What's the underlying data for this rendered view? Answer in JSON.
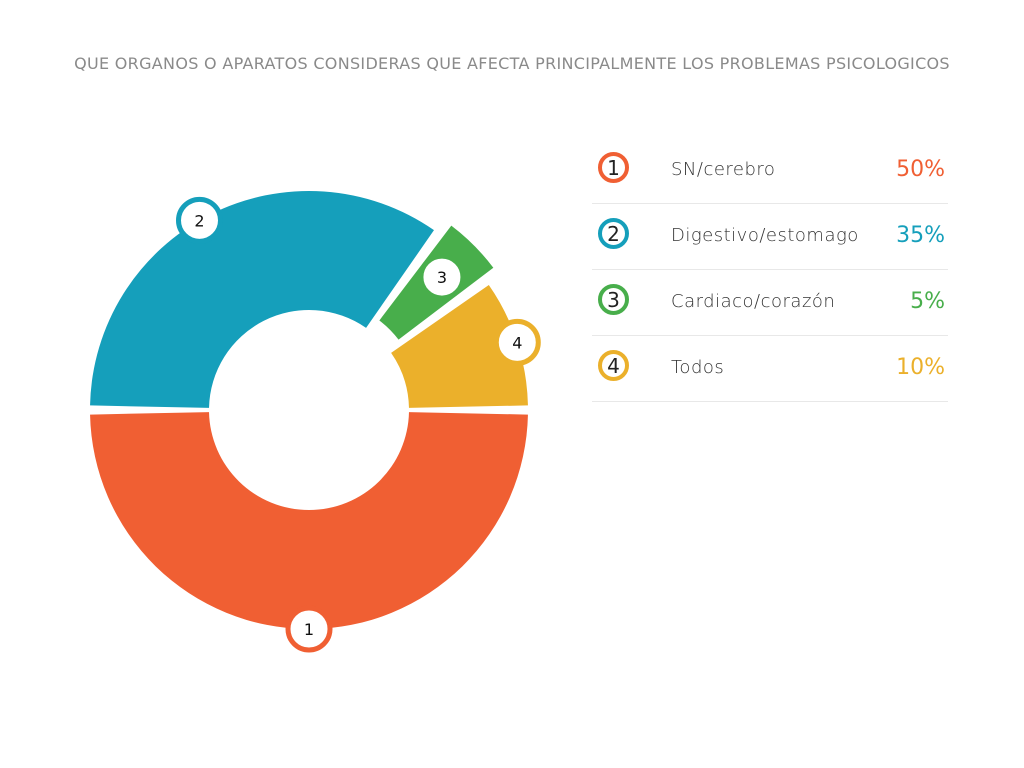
{
  "title": "QUE ORGANOS O APARATOS CONSIDERAS QUE AFECTA PRINCIPALMENTE LOS PROBLEMAS PSICOLOGICOS",
  "chart_data": {
    "type": "pie",
    "variant": "donut",
    "title": "QUE ORGANOS O APARATOS CONSIDERAS QUE AFECTA PRINCIPALMENTE LOS PROBLEMAS PSICOLOGICOS",
    "legend_position": "right",
    "categories": [
      "SN/cerebro",
      "Digestivo/estomago",
      "Cardiaco/corazón",
      "Todos"
    ],
    "values": [
      50,
      35,
      5,
      10
    ],
    "value_labels": [
      "50%",
      "35%",
      "5%",
      "10%"
    ],
    "markers": [
      "1",
      "2",
      "3",
      "4"
    ],
    "colors": [
      "#f05f33",
      "#159fbb",
      "#48ae4b",
      "#ebb02b"
    ]
  }
}
